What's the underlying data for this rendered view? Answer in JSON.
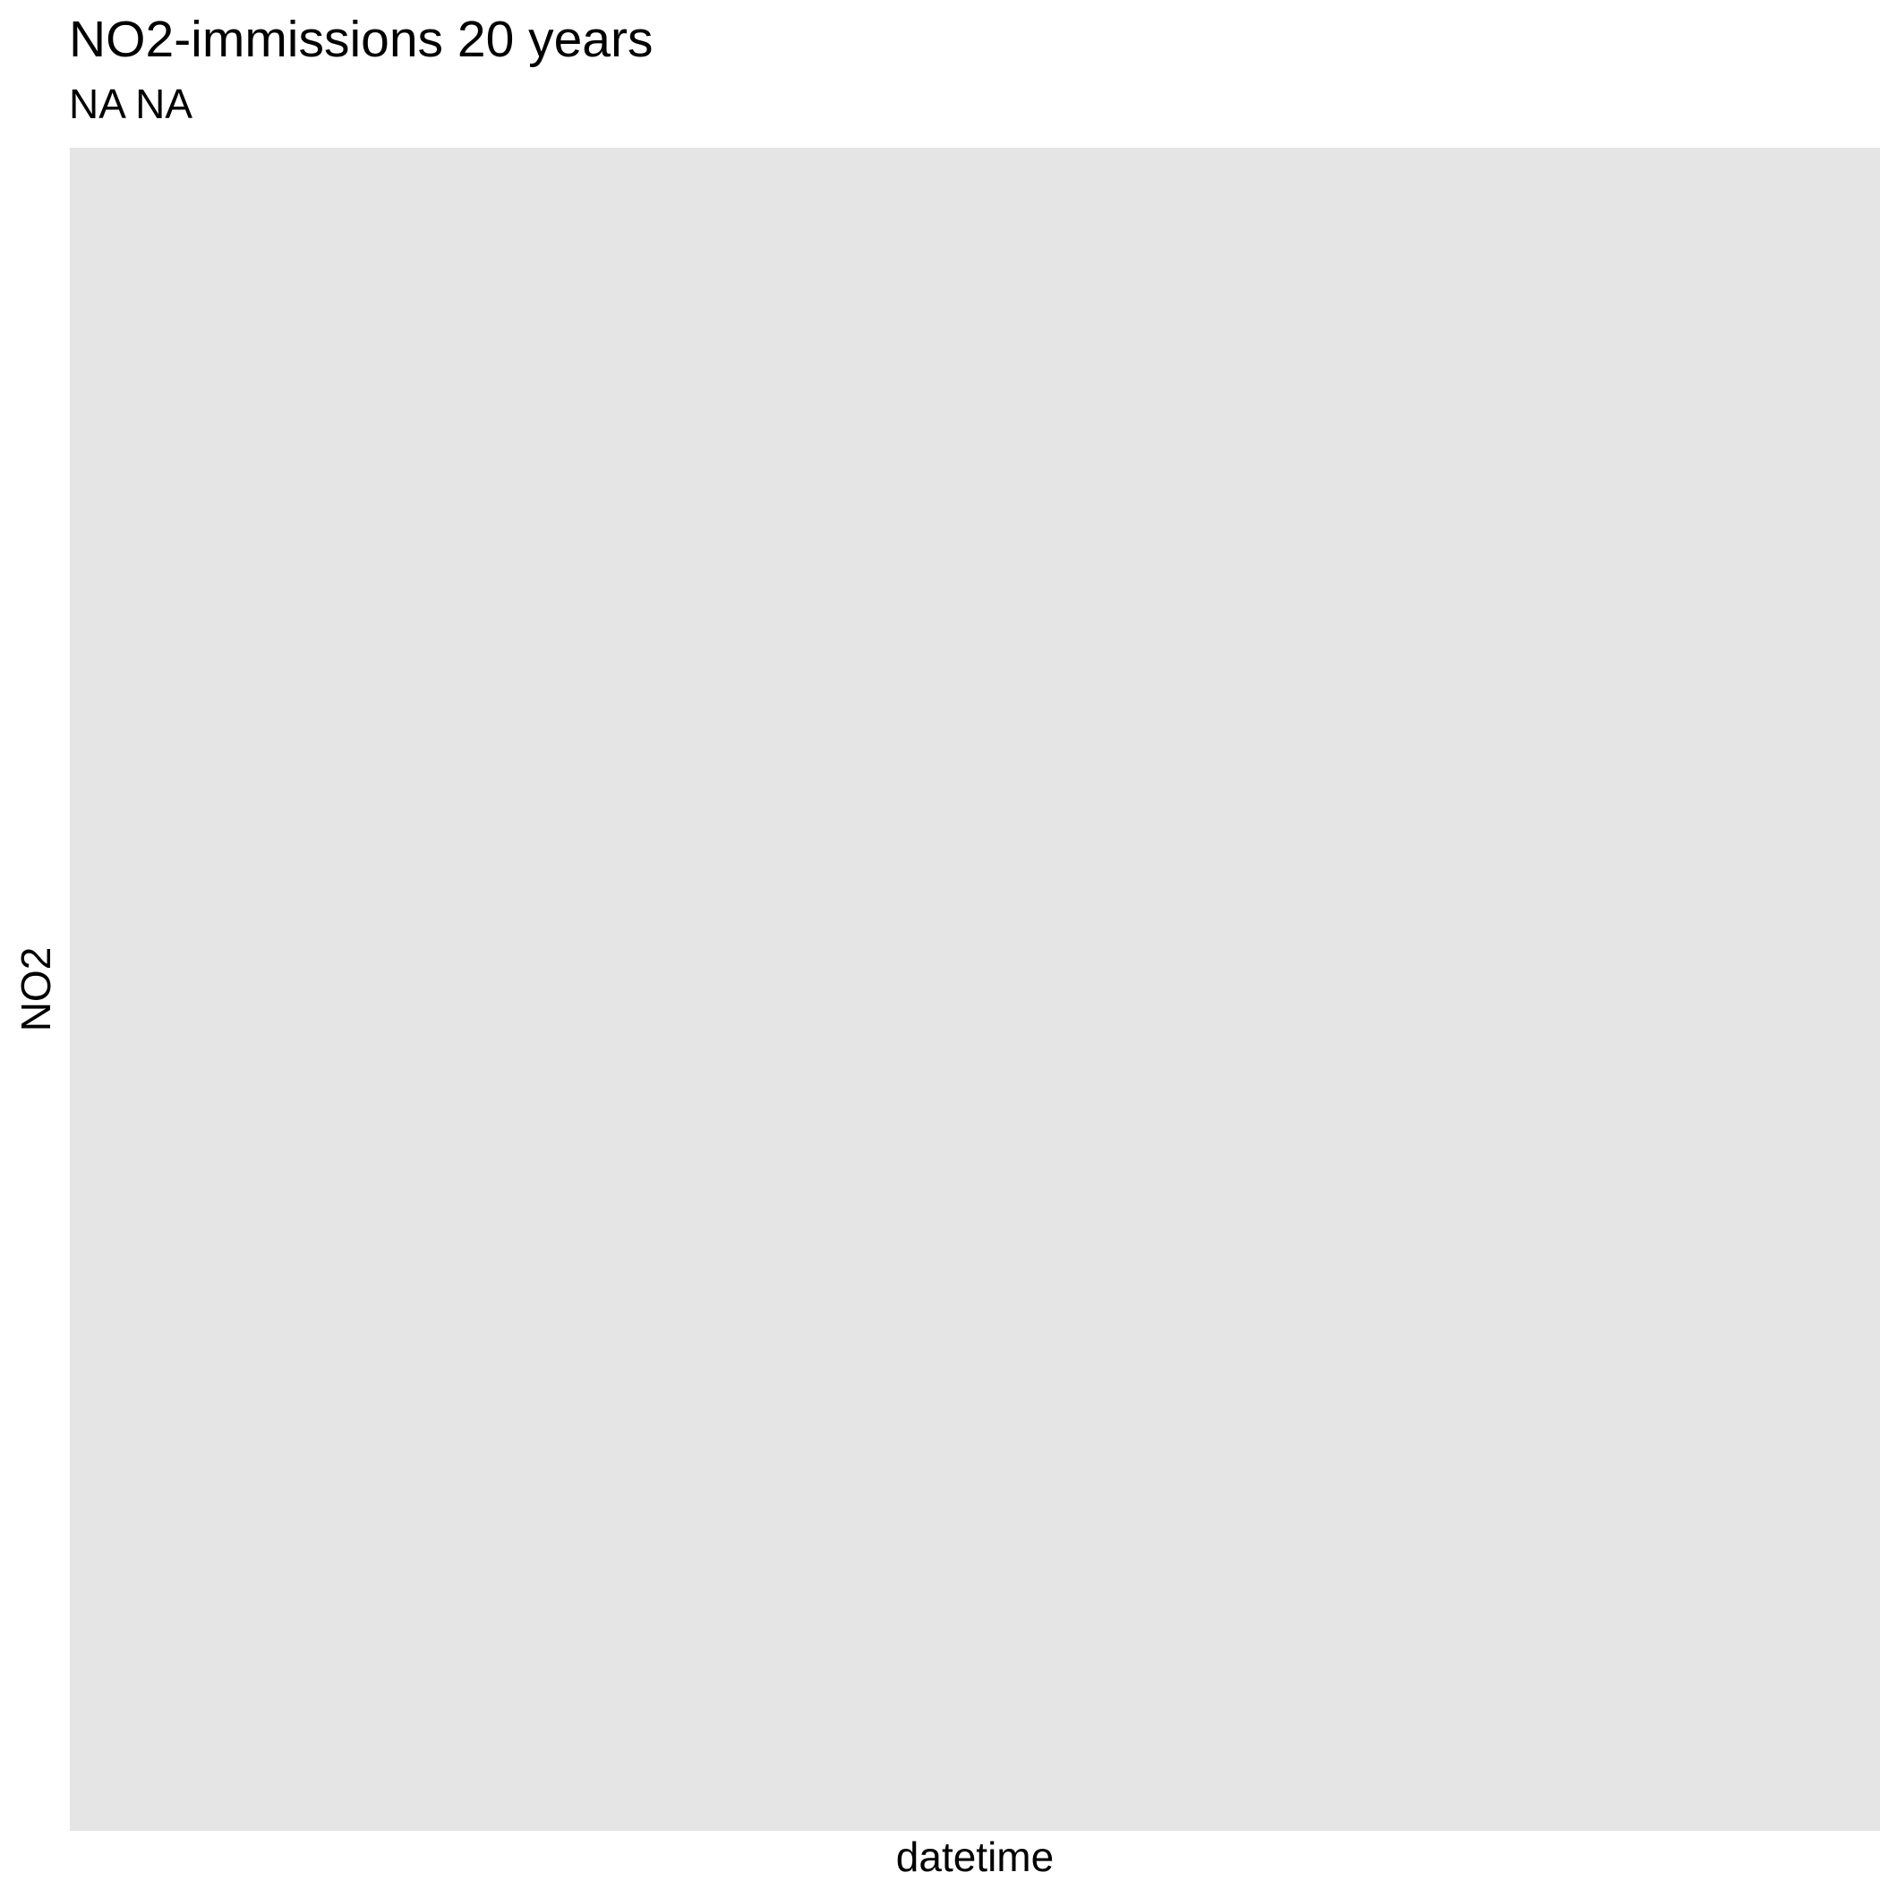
{
  "chart_data": {
    "type": "line",
    "title": "NO2-immissions 20 years",
    "subtitle": "NA NA",
    "xlabel": "datetime",
    "ylabel": "NO2",
    "series": [],
    "grid": false,
    "colors": {
      "panel_background": "#e5e5e5",
      "page_background": "#ffffff",
      "text": "#000000"
    }
  }
}
